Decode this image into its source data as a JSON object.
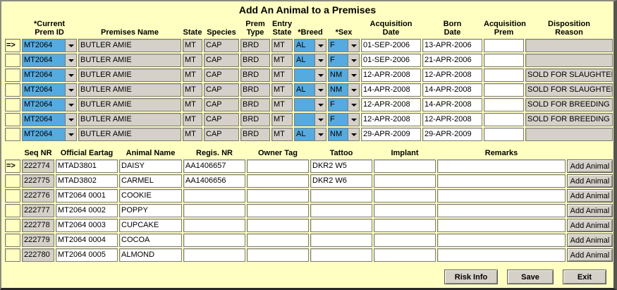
{
  "window": {
    "title": "Add An Animal to a Premises"
  },
  "indicator": "=>",
  "colors": {
    "bg": "#FFFFC2",
    "field-blue": "#55AADF",
    "field-gray": "#D5D1C9",
    "button-face": "#D5D1C9",
    "border-dark": "#7B7B73"
  },
  "animal_table": {
    "headers": {
      "prem_id": "*Current\nPrem ID",
      "premises_name": "Premises Name",
      "state": "State",
      "species": "Species",
      "prem_type": "Prem\nType",
      "entry_state": "Entry\nState",
      "breed": "*Breed",
      "sex": "*Sex",
      "acq_date": "Acquisition\nDate",
      "born_date": "Born\nDate",
      "acq_prem": "Acquisition\nPrem",
      "disposition": "Disposition\nReason"
    },
    "rows": [
      {
        "current": true,
        "prem_id": "MT2064",
        "premises_name": "BUTLER AMIE",
        "state": "MT",
        "species": "CAP",
        "prem_type": "BRD",
        "entry_state": "MT",
        "breed": "AL",
        "sex": "F",
        "acq_date": "01-SEP-2006",
        "born_date": "13-APR-2006",
        "acq_prem": "",
        "disposition": ""
      },
      {
        "prem_id": "MT2064",
        "premises_name": "BUTLER AMIE",
        "state": "MT",
        "species": "CAP",
        "prem_type": "BRD",
        "entry_state": "MT",
        "breed": "AL",
        "sex": "F",
        "acq_date": "01-SEP-2006",
        "born_date": "21-APR-2006",
        "acq_prem": "",
        "disposition": ""
      },
      {
        "prem_id": "MT2064",
        "premises_name": "BUTLER AMIE",
        "state": "MT",
        "species": "CAP",
        "prem_type": "BRD",
        "entry_state": "MT",
        "breed": "",
        "sex": "NM",
        "acq_date": "12-APR-2008",
        "born_date": "12-APR-2008",
        "acq_prem": "",
        "disposition": "SOLD FOR SLAUGHTER"
      },
      {
        "prem_id": "MT2064",
        "premises_name": "BUTLER AMIE",
        "state": "MT",
        "species": "CAP",
        "prem_type": "BRD",
        "entry_state": "MT",
        "breed": "AL",
        "sex": "NM",
        "acq_date": "14-APR-2008",
        "born_date": "14-APR-2008",
        "acq_prem": "",
        "disposition": "SOLD FOR SLAUGHTER"
      },
      {
        "prem_id": "MT2064",
        "premises_name": "BUTLER AMIE",
        "state": "MT",
        "species": "CAP",
        "prem_type": "BRD",
        "entry_state": "MT",
        "breed": "",
        "sex": "F",
        "acq_date": "12-APR-2008",
        "born_date": "14-APR-2008",
        "acq_prem": "",
        "disposition": "SOLD FOR BREEDING"
      },
      {
        "prem_id": "MT2064",
        "premises_name": "BUTLER AMIE",
        "state": "MT",
        "species": "CAP",
        "prem_type": "BRD",
        "entry_state": "MT",
        "breed": "",
        "sex": "F",
        "acq_date": "12-APR-2008",
        "born_date": "12-APR-2008",
        "acq_prem": "",
        "disposition": "SOLD FOR BREEDING"
      },
      {
        "prem_id": "MT2064",
        "premises_name": "BUTLER AMIE",
        "state": "MT",
        "species": "CAP",
        "prem_type": "BRD",
        "entry_state": "MT",
        "breed": "AL",
        "sex": "NM",
        "acq_date": "29-APR-2009",
        "born_date": "29-APR-2009",
        "acq_prem": "",
        "disposition": ""
      }
    ]
  },
  "eartag_table": {
    "headers": {
      "seq": "Seq NR",
      "eartag": "Official Eartag",
      "name": "Animal Name",
      "regis": "Regis. NR",
      "owner_tag": "Owner Tag",
      "tattoo": "Tattoo",
      "implant": "Implant",
      "remarks": "Remarks"
    },
    "add_animal_label": "Add Animal",
    "rows": [
      {
        "current": true,
        "seq": "222774",
        "eartag": "MTAD3801",
        "name": "DAISY",
        "regis": "AA1406657",
        "owner_tag": "",
        "tattoo": "DKR2 W5",
        "implant": "",
        "remarks": ""
      },
      {
        "seq": "222775",
        "eartag": "MTAD3802",
        "name": "CARMEL",
        "regis": "AA1406656",
        "owner_tag": "",
        "tattoo": "DKR2 W6",
        "implant": "",
        "remarks": ""
      },
      {
        "seq": "222776",
        "eartag": "MT2064 0001",
        "name": "COOKIE",
        "regis": "",
        "owner_tag": "",
        "tattoo": "",
        "implant": "",
        "remarks": ""
      },
      {
        "seq": "222777",
        "eartag": "MT2064 0002",
        "name": "POPPY",
        "regis": "",
        "owner_tag": "",
        "tattoo": "",
        "implant": "",
        "remarks": ""
      },
      {
        "seq": "222778",
        "eartag": "MT2064 0003",
        "name": "CUPCAKE",
        "regis": "",
        "owner_tag": "",
        "tattoo": "",
        "implant": "",
        "remarks": ""
      },
      {
        "seq": "222779",
        "eartag": "MT2064 0004",
        "name": "COCOA",
        "regis": "",
        "owner_tag": "",
        "tattoo": "",
        "implant": "",
        "remarks": ""
      },
      {
        "seq": "222780",
        "eartag": "MT2064 0005",
        "name": "ALMOND",
        "regis": "",
        "owner_tag": "",
        "tattoo": "",
        "implant": "",
        "remarks": ""
      }
    ]
  },
  "footer": {
    "risk_info_label": "Risk Info",
    "save_label": "Save",
    "exit_label": "Exit"
  }
}
